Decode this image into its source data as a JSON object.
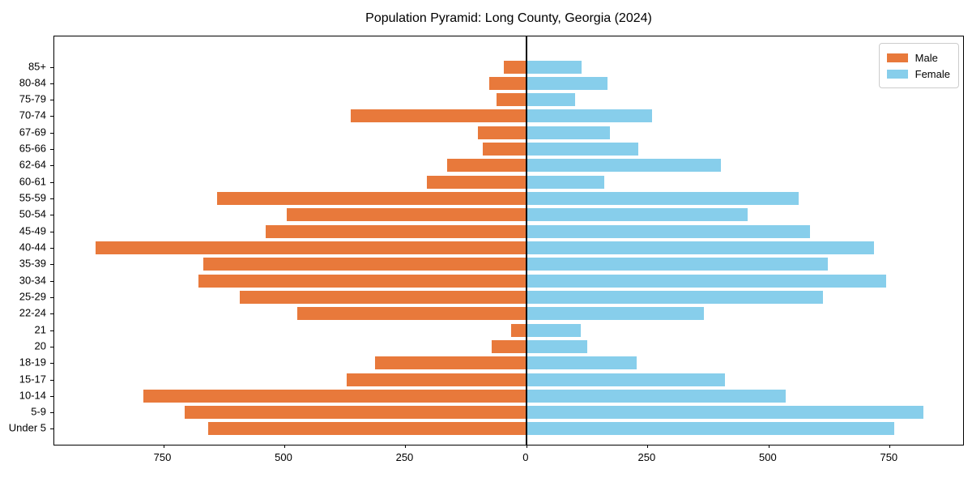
{
  "title": "Population Pyramid: Long County, Georgia (2024)",
  "legend": {
    "male_label": "Male",
    "female_label": "Female"
  },
  "colors": {
    "male": "#e8793b",
    "female": "#87ceeb",
    "axis": "#000000",
    "legend_border": "#cccccc",
    "background": "#ffffff"
  },
  "chart_data": {
    "type": "bar",
    "variant": "population-pyramid",
    "orientation": "horizontal",
    "title": "Population Pyramid: Long County, Georgia (2024)",
    "xlabel": "",
    "ylabel": "",
    "categories": [
      "85+",
      "80-84",
      "75-79",
      "70-74",
      "67-69",
      "65-66",
      "62-64",
      "60-61",
      "55-59",
      "50-54",
      "45-49",
      "40-44",
      "35-39",
      "30-34",
      "25-29",
      "22-24",
      "21",
      "20",
      "18-19",
      "15-17",
      "10-14",
      "5-9",
      "Under 5"
    ],
    "series": [
      {
        "name": "Male",
        "side": "left",
        "color": "#e8793b",
        "values": [
          47,
          76,
          62,
          363,
          101,
          90,
          163,
          205,
          638,
          495,
          539,
          890,
          667,
          678,
          592,
          474,
          31,
          71,
          313,
          371,
          791,
          706,
          658
        ]
      },
      {
        "name": "Female",
        "side": "right",
        "color": "#87ceeb",
        "values": [
          114,
          168,
          101,
          259,
          173,
          231,
          401,
          161,
          562,
          457,
          586,
          718,
          622,
          742,
          613,
          367,
          112,
          125,
          227,
          410,
          535,
          819,
          759
        ]
      }
    ],
    "xlim": [
      -975,
      905
    ],
    "xticks": [
      -750,
      -500,
      -250,
      0,
      250,
      500,
      750
    ],
    "xtick_labels": [
      "750",
      "500",
      "250",
      "0",
      "250",
      "500",
      "750"
    ],
    "grid": false,
    "zero_line": true,
    "legend_position": "upper right"
  }
}
